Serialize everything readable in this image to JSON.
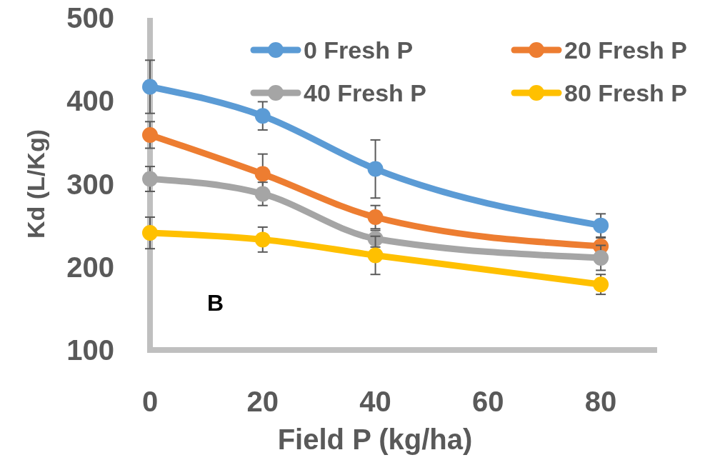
{
  "chart_data": {
    "type": "line",
    "xlabel": "Field P (kg/ha)",
    "ylabel": "Kd (L/Kg)",
    "x": [
      0,
      20,
      40,
      80
    ],
    "xlim": [
      0,
      90
    ],
    "xticks": [
      0,
      20,
      40,
      60,
      80
    ],
    "ylim": [
      100,
      500
    ],
    "yticks": [
      100,
      200,
      300,
      400,
      500
    ],
    "grid": false,
    "legend": "top",
    "marker": "circle",
    "line_style": "solid",
    "annotations": [
      "B"
    ],
    "series": [
      {
        "name": "0 Fresh P",
        "color": "#5b9bd5",
        "values": [
          417,
          382,
          318,
          250
        ],
        "errors": [
          32,
          17,
          35,
          14
        ]
      },
      {
        "name": "20 Fresh P",
        "color": "#ed7d31",
        "values": [
          359,
          312,
          260,
          225
        ],
        "errors": [
          16,
          24,
          14,
          10
        ]
      },
      {
        "name": "40 Fresh P",
        "color": "#a5a5a5",
        "values": [
          306,
          288,
          234,
          211
        ],
        "errors": [
          15,
          14,
          10,
          15
        ]
      },
      {
        "name": "80 Fresh P",
        "color": "#ffc000",
        "values": [
          241,
          233,
          214,
          179
        ],
        "errors": [
          19,
          15,
          23,
          12
        ]
      }
    ]
  }
}
